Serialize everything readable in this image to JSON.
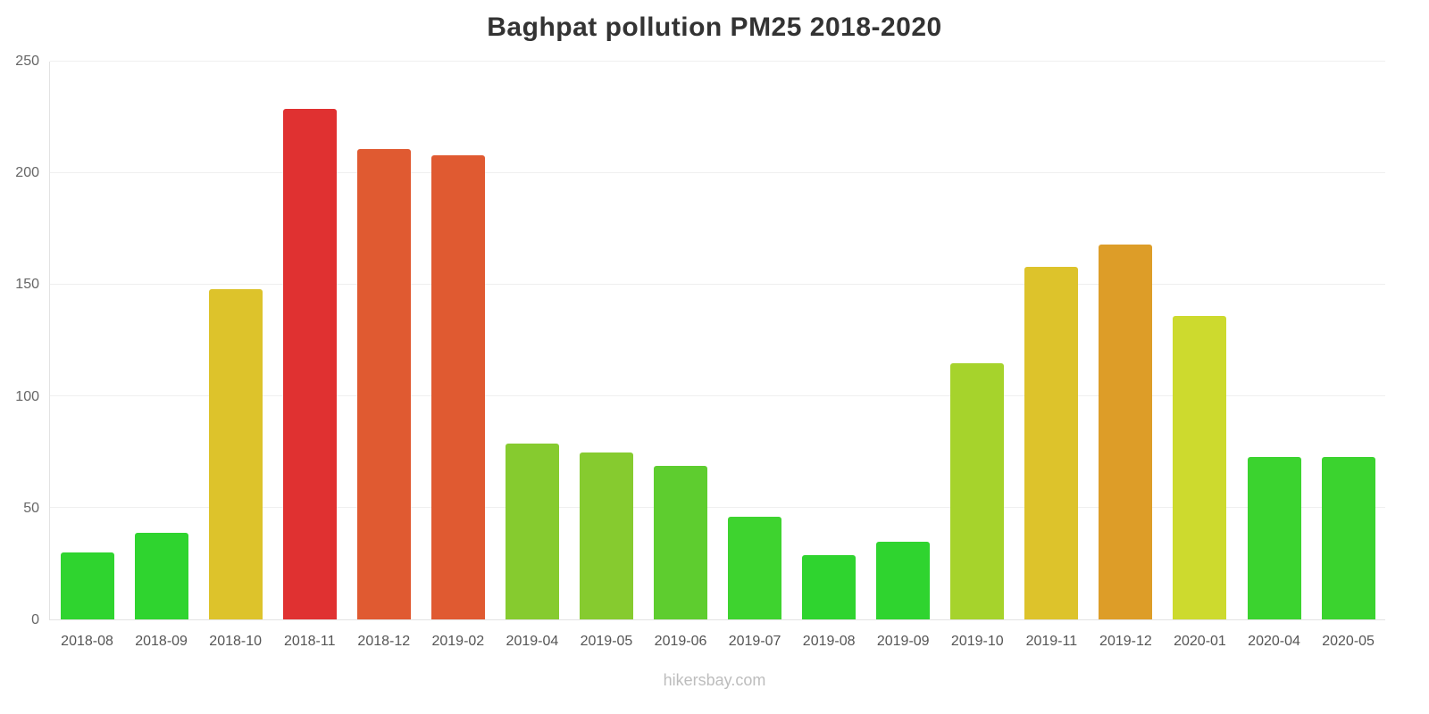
{
  "title": "Baghpat pollution PM25 2018-2020",
  "footer": "hikersbay.com",
  "chart_data": {
    "type": "bar",
    "title": "Baghpat pollution PM25 2018-2020",
    "xlabel": "",
    "ylabel": "",
    "ylim": [
      0,
      250
    ],
    "yticks": [
      0,
      50,
      100,
      150,
      200,
      250
    ],
    "grid": true,
    "legend": "none",
    "categories": [
      "2018-08",
      "2018-09",
      "2018-10",
      "2018-11",
      "2018-12",
      "2019-02",
      "2019-04",
      "2019-05",
      "2019-06",
      "2019-07",
      "2019-08",
      "2019-09",
      "2019-10",
      "2019-11",
      "2019-12",
      "2020-01",
      "2020-04",
      "2020-05"
    ],
    "values": [
      30,
      39,
      148,
      229,
      211,
      208,
      79,
      75,
      69,
      46,
      29,
      35,
      115,
      158,
      168,
      136,
      73,
      73
    ],
    "colors": [
      "#2fd42f",
      "#2fd42f",
      "#ddc32b",
      "#e03131",
      "#e05a31",
      "#e05a31",
      "#86cb2f",
      "#86cb2f",
      "#5ecd2f",
      "#3ed32f",
      "#2fd42f",
      "#2fd42f",
      "#a6d32c",
      "#ddc32b",
      "#dd9d28",
      "#cdda2e",
      "#3bd32f",
      "#3bd32f"
    ]
  }
}
